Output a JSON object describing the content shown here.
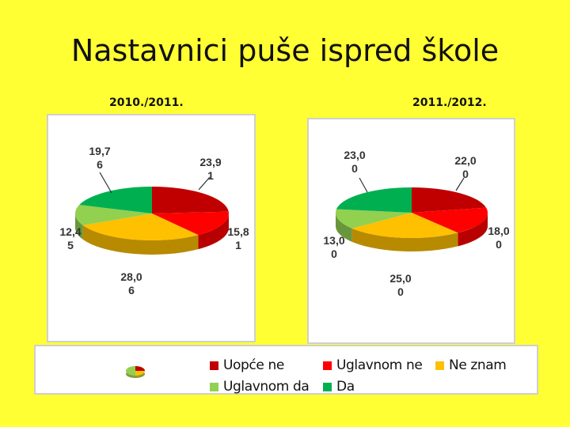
{
  "title": "Nastavnici puše ispred škole",
  "colors": {
    "background": "#ffff33",
    "Uopće ne": "#c00000",
    "Uglavnom ne": "#ff0000",
    "Ne znam": "#ffc000",
    "Uglavnom da": "#92d050",
    "Da": "#00b050"
  },
  "chart_data": [
    {
      "type": "pie",
      "title": "2010./2011.",
      "categories": [
        "Uopće ne",
        "Uglavnom ne",
        "Ne znam",
        "Uglavnom da",
        "Da"
      ],
      "values": [
        23.91,
        15.81,
        28.06,
        12.45,
        19.76
      ],
      "labels": [
        {
          "line1": "23,9",
          "line2": "1"
        },
        {
          "line1": "15,8",
          "line2": "1"
        },
        {
          "line1": "28,0",
          "line2": "6"
        },
        {
          "line1": "12,4",
          "line2": "5"
        },
        {
          "line1": "19,7",
          "line2": "6"
        }
      ]
    },
    {
      "type": "pie",
      "title": "2011./2012.",
      "categories": [
        "Uopće ne",
        "Uglavnom ne",
        "Ne znam",
        "Uglavnom da",
        "Da"
      ],
      "values": [
        22.0,
        18.0,
        25.0,
        13.0,
        23.0
      ],
      "labels": [
        {
          "line1": "22,0",
          "line2": "0"
        },
        {
          "line1": "18,0",
          "line2": "0"
        },
        {
          "line1": "25,0",
          "line2": "0"
        },
        {
          "line1": "13,0",
          "line2": "0"
        },
        {
          "line1": "23,0",
          "line2": "0"
        }
      ]
    }
  ],
  "legend": {
    "placement": "bottom",
    "items": [
      "Uopće ne",
      "Uglavnom ne",
      "Ne znam",
      "Uglavnom da",
      "Da"
    ]
  }
}
